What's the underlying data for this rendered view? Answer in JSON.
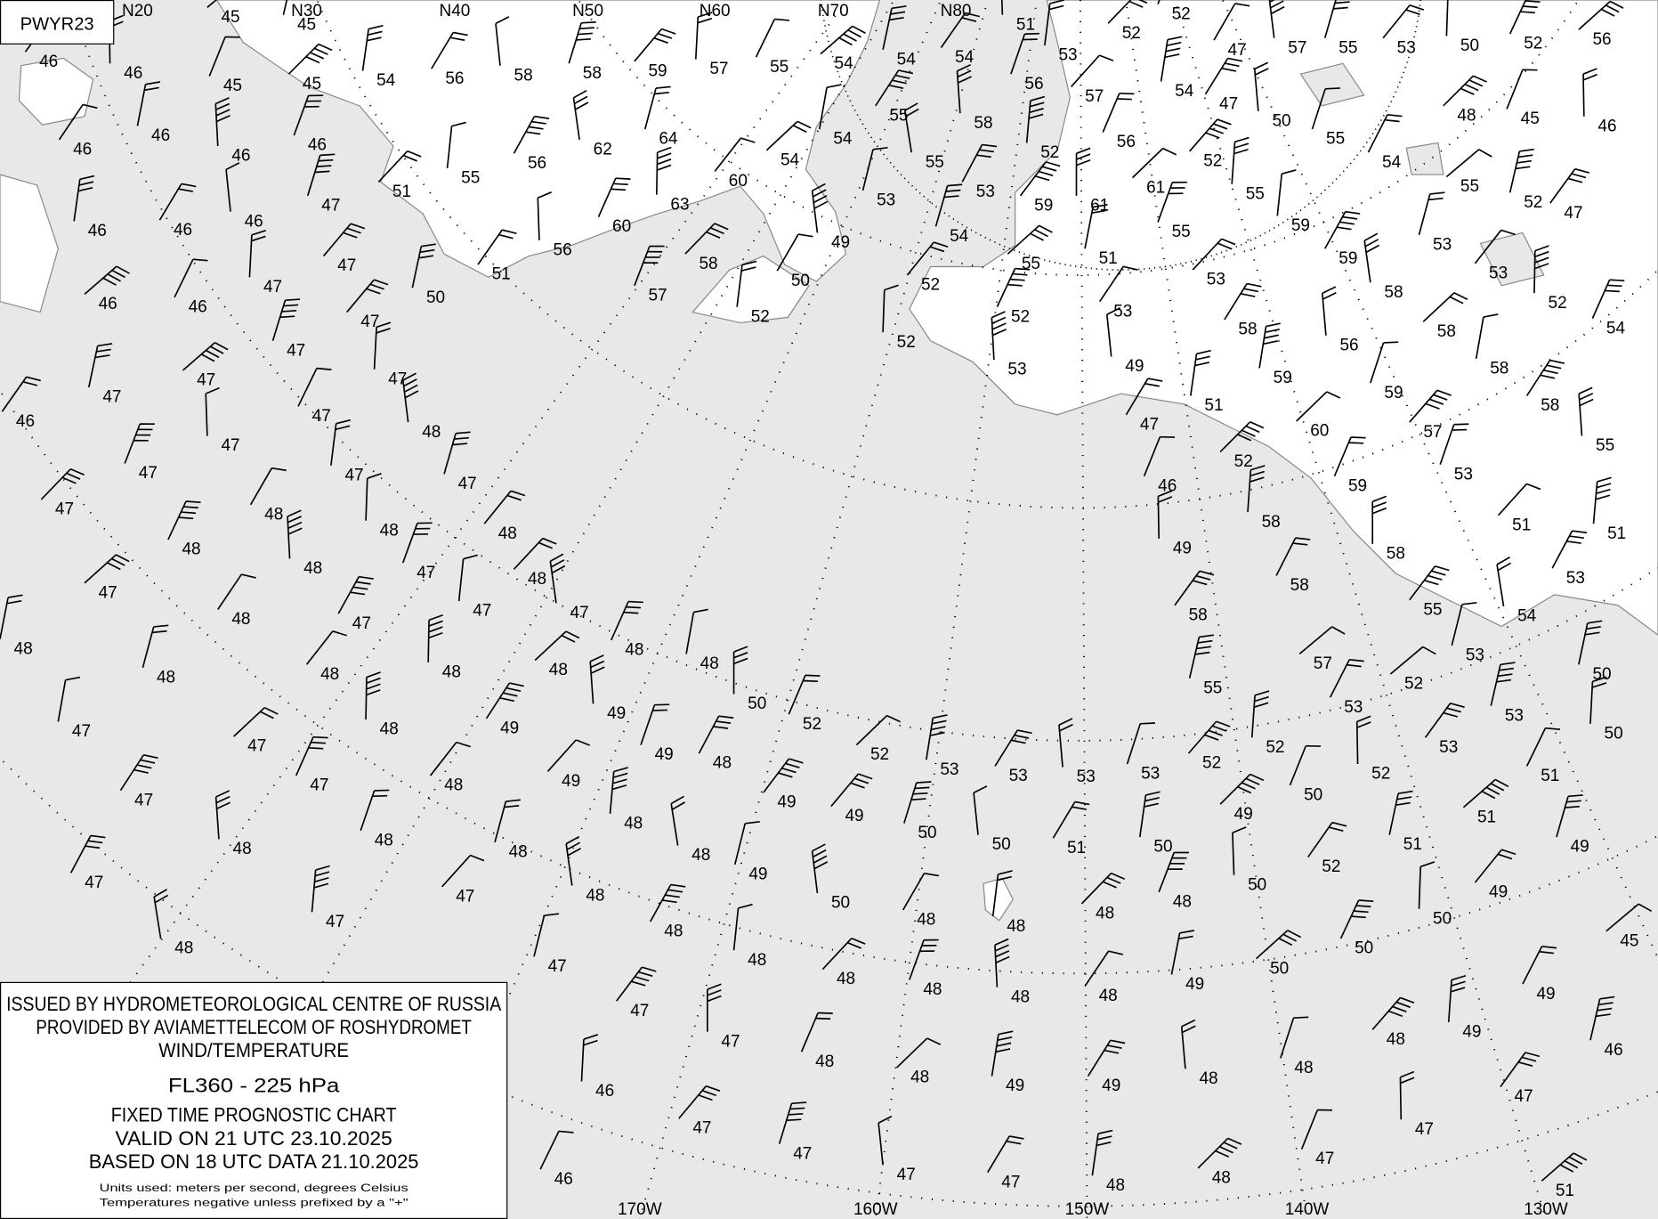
{
  "chart_id": "PWYR23",
  "legend": {
    "line1": "ISSUED BY HYDROMETEOROLOGICAL CENTRE OF RUSSIA",
    "line2": "PROVIDED BY AVIAMETTELECOM OF ROSHYDROMET",
    "line3": "WIND/TEMPERATURE",
    "level": "FL360 - 225 hPa",
    "chart_type": "FIXED TIME PROGNOSTIC CHART",
    "valid": "VALID ON 21 UTC 23.10.2025",
    "based": "BASED ON 18 UTC DATA 21.10.2025",
    "units": "Units used: meters per second, degrees Celsius",
    "note": "Temperatures negative unless prefixed by a \"+\""
  },
  "top_labels": [
    "N20",
    "N30",
    "N40",
    "N50",
    "N60",
    "N70",
    "N80"
  ],
  "bottom_labels": [
    "170W",
    "160W",
    "150W",
    "140W",
    "130W"
  ],
  "colors": {
    "ocean": "#e8e8e8",
    "land": "#ffffff",
    "coast": "#888888",
    "ink": "#000000"
  },
  "temperatures": [
    "45",
    "45",
    "46",
    "46",
    "45",
    "45",
    "54",
    "56",
    "58",
    "58",
    "59",
    "57",
    "55",
    "54",
    "54",
    "54",
    "51",
    "52",
    "52",
    "53",
    "47",
    "57",
    "55",
    "53",
    "50",
    "52",
    "56",
    "46",
    "46",
    "46",
    "46",
    "51",
    "55",
    "56",
    "62",
    "64",
    "60",
    "63",
    "60",
    "54",
    "54",
    "55",
    "58",
    "56",
    "57",
    "52",
    "53",
    "55",
    "53",
    "59",
    "61",
    "56",
    "61",
    "54",
    "47",
    "50",
    "55",
    "52",
    "55",
    "54",
    "55",
    "52",
    "47",
    "46",
    "45",
    "48",
    "46",
    "46",
    "46",
    "47",
    "47",
    "47",
    "46",
    "46",
    "50",
    "51",
    "56",
    "57",
    "58",
    "52",
    "50",
    "49",
    "54",
    "52",
    "52",
    "52",
    "55",
    "51",
    "53",
    "53",
    "55",
    "53",
    "59",
    "59",
    "58",
    "53",
    "53",
    "52",
    "54",
    "58",
    "58",
    "58",
    "55",
    "53",
    "51",
    "51",
    "53",
    "54",
    "53",
    "55",
    "58",
    "59",
    "60",
    "59",
    "58",
    "56",
    "59",
    "57",
    "58",
    "58",
    "57",
    "55",
    "58",
    "49",
    "46",
    "52",
    "51",
    "47",
    "49",
    "47",
    "47",
    "47",
    "47",
    "47",
    "47",
    "46",
    "47",
    "47",
    "47",
    "47",
    "48",
    "48",
    "47",
    "48",
    "48",
    "48",
    "47",
    "48",
    "48",
    "48",
    "47",
    "48",
    "47",
    "47",
    "47",
    "48",
    "48",
    "48",
    "48",
    "48",
    "48",
    "49",
    "49",
    "49",
    "49",
    "48",
    "48",
    "48",
    "49",
    "49",
    "50",
    "52",
    "52",
    "53",
    "53",
    "53",
    "53",
    "52",
    "52",
    "53",
    "52",
    "53",
    "53",
    "52",
    "50",
    "49",
    "50",
    "51",
    "50",
    "50",
    "49",
    "50",
    "51",
    "51",
    "51",
    "52",
    "50",
    "48",
    "48",
    "48",
    "48",
    "50",
    "49",
    "49",
    "50",
    "50",
    "50",
    "49",
    "48",
    "48",
    "48",
    "48",
    "48",
    "48",
    "48",
    "48",
    "48",
    "48",
    "47",
    "47",
    "47",
    "47",
    "48",
    "48",
    "47",
    "47",
    "47",
    "48",
    "47",
    "47",
    "47",
    "48",
    "48",
    "49",
    "49",
    "48",
    "48",
    "48",
    "49",
    "49",
    "45",
    "46",
    "47",
    "47",
    "47",
    "48",
    "48",
    "47",
    "47",
    "47",
    "47",
    "46",
    "46",
    "51",
    "50"
  ]
}
